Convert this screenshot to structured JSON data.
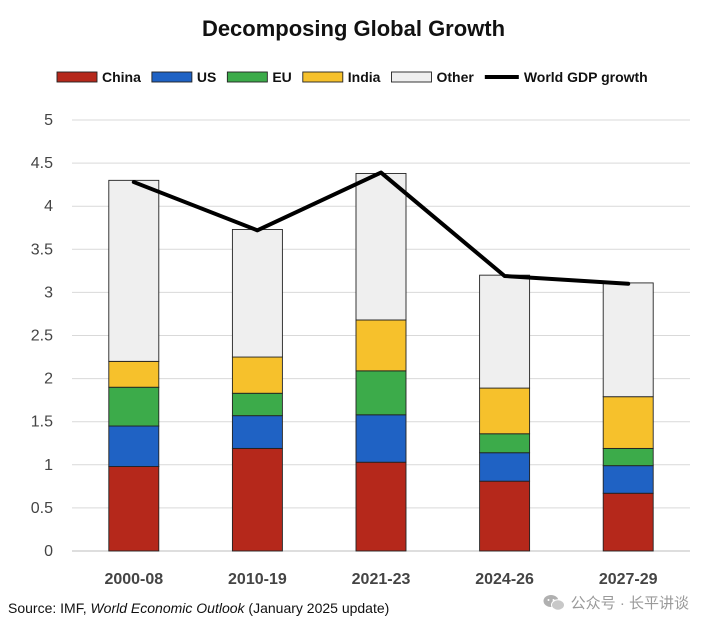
{
  "chart_data": {
    "type": "bar",
    "stacked": true,
    "title": "Decomposing Global Growth",
    "categories": [
      "2000-08",
      "2010-19",
      "2021-23",
      "2024-26",
      "2027-29"
    ],
    "series": [
      {
        "name": "China",
        "color": "#b5281b",
        "values": [
          0.98,
          1.19,
          1.03,
          0.81,
          0.67
        ]
      },
      {
        "name": "US",
        "color": "#1f62c4",
        "values": [
          0.47,
          0.38,
          0.55,
          0.33,
          0.32
        ]
      },
      {
        "name": "EU",
        "color": "#3cab4a",
        "values": [
          0.45,
          0.26,
          0.51,
          0.22,
          0.2
        ]
      },
      {
        "name": "India",
        "color": "#f6c12c",
        "values": [
          0.3,
          0.42,
          0.59,
          0.53,
          0.6
        ]
      },
      {
        "name": "Other",
        "color": "#efefef",
        "values": [
          2.1,
          1.48,
          1.7,
          1.31,
          1.32
        ]
      }
    ],
    "line_series": {
      "name": "World GDP growth",
      "color": "#000000",
      "values": [
        4.28,
        3.72,
        4.39,
        3.19,
        3.1
      ]
    },
    "ylim": [
      0,
      5
    ],
    "yticks": [
      "0",
      "0.5",
      "1",
      "1.5",
      "2",
      "2.5",
      "3",
      "3.5",
      "4",
      "4.5",
      "5"
    ],
    "grid": true,
    "legend": "top"
  },
  "source": {
    "prefix": "Source: IMF, ",
    "publication": "World Economic Outlook",
    "suffix": " (January 2025 update)"
  },
  "watermark": {
    "text": "公众号 · 长平讲谈"
  }
}
